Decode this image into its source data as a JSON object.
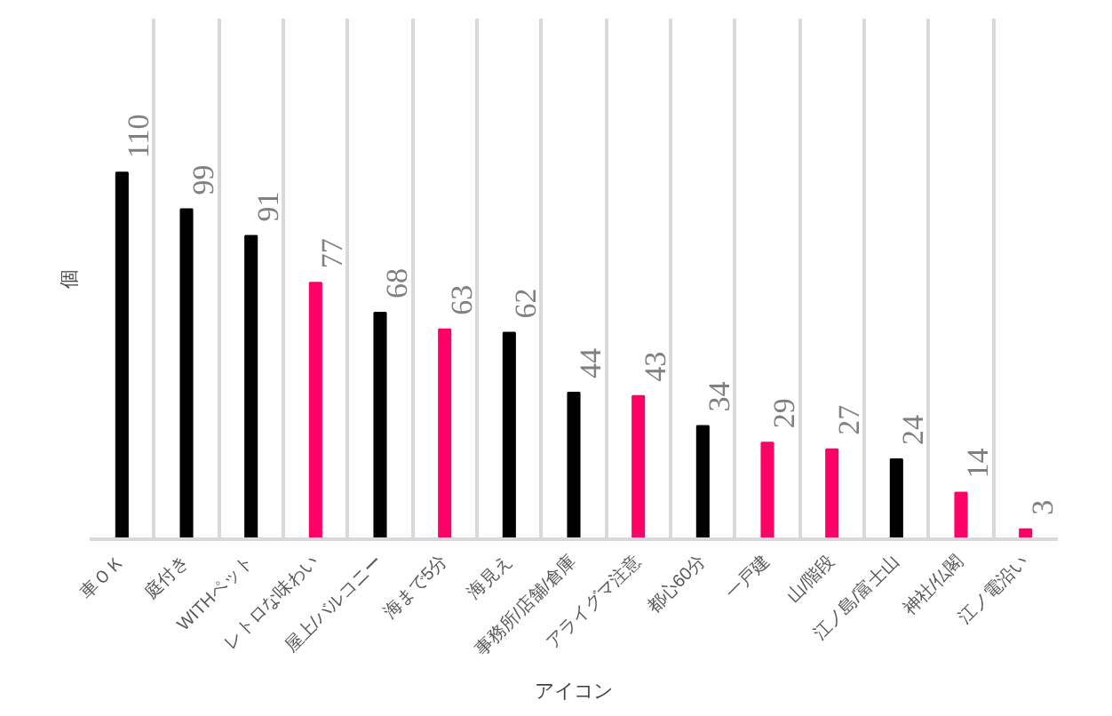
{
  "chart_data": {
    "type": "bar",
    "xlabel": "アイコン",
    "ylabel": "個",
    "categories": [
      "車ＯＫ",
      "庭付き",
      "WITHペット",
      "レトロな味わい",
      "屋上/バルコニー",
      "海まで5分",
      "海見え",
      "事務所/店舗/倉庫",
      "アライグマ注意",
      "都心60分",
      "一戸建",
      "山/階段",
      "江ノ島/富士山",
      "神社/仏閣",
      "江ノ電沿い"
    ],
    "values": [
      110,
      99,
      91,
      77,
      68,
      63,
      62,
      44,
      43,
      34,
      29,
      27,
      24,
      14,
      3
    ],
    "colors": [
      "#000000",
      "#000000",
      "#000000",
      "#ff0066",
      "#000000",
      "#ff0066",
      "#000000",
      "#000000",
      "#ff0066",
      "#000000",
      "#ff0066",
      "#ff0066",
      "#000000",
      "#ff0066",
      "#ff0066"
    ],
    "data_labels": true,
    "grid": "x"
  }
}
